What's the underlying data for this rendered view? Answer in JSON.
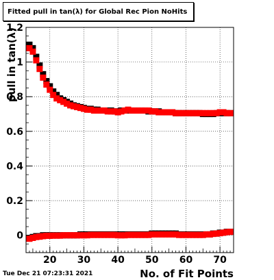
{
  "chart_data": {
    "type": "scatter",
    "title": "Fitted pull in tan(λ) for Global Rec Pion NoHits",
    "xlabel": "No. of Fit Points",
    "ylabel": "pull in tan(λ)",
    "xlim": [
      13,
      74
    ],
    "ylim": [
      -0.1,
      1.2
    ],
    "x_ticks": [
      "20",
      "30",
      "40",
      "50",
      "60",
      "70"
    ],
    "y_ticks": [
      "0",
      "0.2",
      "0.4",
      "0.6",
      "0.8",
      "1",
      "1.2"
    ],
    "grid": true,
    "series": [
      {
        "color": "#000000",
        "marker": "square",
        "x": [
          14,
          15,
          16,
          17,
          18,
          19,
          20,
          21,
          22,
          23,
          24,
          25,
          26,
          27,
          28,
          29,
          30,
          31,
          32,
          33,
          34,
          35,
          36,
          37,
          38,
          39,
          40,
          41,
          42,
          43,
          44,
          45,
          46,
          47,
          48,
          49,
          50,
          51,
          52,
          53,
          54,
          55,
          56,
          57,
          58,
          59,
          60,
          61,
          62,
          63,
          64,
          65,
          66,
          67,
          68,
          69,
          70,
          71,
          72,
          73
        ],
        "values": [
          1.1,
          1.08,
          1.03,
          0.98,
          0.93,
          0.89,
          0.86,
          0.83,
          0.81,
          0.79,
          0.78,
          0.77,
          0.76,
          0.75,
          0.745,
          0.74,
          0.735,
          0.73,
          0.73,
          0.725,
          0.725,
          0.72,
          0.72,
          0.72,
          0.72,
          0.715,
          0.715,
          0.72,
          0.72,
          0.72,
          0.72,
          0.72,
          0.72,
          0.72,
          0.72,
          0.715,
          0.715,
          0.715,
          0.715,
          0.71,
          0.71,
          0.71,
          0.71,
          0.705,
          0.705,
          0.705,
          0.705,
          0.705,
          0.705,
          0.705,
          0.705,
          0.7,
          0.7,
          0.7,
          0.7,
          0.705,
          0.705,
          0.705,
          0.705,
          0.705
        ]
      },
      {
        "color": "#ff0000",
        "marker": "square",
        "x": [
          14,
          15,
          16,
          17,
          18,
          19,
          20,
          21,
          22,
          23,
          24,
          25,
          26,
          27,
          28,
          29,
          30,
          31,
          32,
          33,
          34,
          35,
          36,
          37,
          38,
          39,
          40,
          41,
          42,
          43,
          44,
          45,
          46,
          47,
          48,
          49,
          50,
          51,
          52,
          53,
          54,
          55,
          56,
          57,
          58,
          59,
          60,
          61,
          62,
          63,
          64,
          65,
          66,
          67,
          68,
          69,
          70,
          71,
          72,
          73
        ],
        "values": [
          1.08,
          1.06,
          1.01,
          0.96,
          0.91,
          0.87,
          0.84,
          0.81,
          0.79,
          0.78,
          0.77,
          0.76,
          0.75,
          0.745,
          0.74,
          0.735,
          0.73,
          0.725,
          0.725,
          0.72,
          0.72,
          0.72,
          0.72,
          0.715,
          0.715,
          0.715,
          0.71,
          0.715,
          0.72,
          0.725,
          0.72,
          0.72,
          0.72,
          0.72,
          0.72,
          0.72,
          0.715,
          0.715,
          0.71,
          0.71,
          0.71,
          0.71,
          0.71,
          0.705,
          0.705,
          0.705,
          0.705,
          0.705,
          0.705,
          0.705,
          0.705,
          0.705,
          0.705,
          0.705,
          0.705,
          0.705,
          0.71,
          0.71,
          0.705,
          0.705
        ]
      },
      {
        "color": "#000000",
        "marker": "square",
        "x": [
          14,
          15,
          16,
          17,
          18,
          19,
          20,
          21,
          22,
          23,
          24,
          25,
          26,
          27,
          28,
          29,
          30,
          31,
          32,
          33,
          34,
          35,
          36,
          37,
          38,
          39,
          40,
          41,
          42,
          43,
          44,
          45,
          46,
          47,
          48,
          49,
          50,
          51,
          52,
          53,
          54,
          55,
          56,
          57,
          58,
          59,
          60,
          61,
          62,
          63,
          64,
          65,
          66,
          67,
          68,
          69,
          70,
          71,
          72,
          73
        ],
        "values": [
          -0.015,
          -0.01,
          -0.005,
          -0.005,
          0,
          0,
          0,
          0,
          0,
          0,
          0,
          0,
          0,
          0,
          0,
          0.005,
          0.005,
          0.005,
          0.005,
          0.005,
          0.005,
          0.005,
          0.005,
          0.005,
          0.005,
          0.005,
          0.005,
          0.005,
          0.005,
          0.005,
          0.005,
          0.005,
          0.005,
          0.005,
          0.005,
          0.005,
          0.01,
          0.01,
          0.01,
          0.01,
          0.01,
          0.01,
          0.01,
          0.01,
          0.005,
          0.005,
          0.005,
          0.005,
          0.005,
          0.005,
          0.005,
          0.005,
          0.005,
          0.005,
          0.01,
          0.01,
          0.015,
          0.015,
          0.02,
          0.02
        ]
      },
      {
        "color": "#ff0000",
        "marker": "square",
        "x": [
          14,
          15,
          16,
          17,
          18,
          19,
          20,
          21,
          22,
          23,
          24,
          25,
          26,
          27,
          28,
          29,
          30,
          31,
          32,
          33,
          34,
          35,
          36,
          37,
          38,
          39,
          40,
          41,
          42,
          43,
          44,
          45,
          46,
          47,
          48,
          49,
          50,
          51,
          52,
          53,
          54,
          55,
          56,
          57,
          58,
          59,
          60,
          61,
          62,
          63,
          64,
          65,
          66,
          67,
          68,
          69,
          70,
          71,
          72,
          73
        ],
        "values": [
          -0.02,
          -0.015,
          -0.01,
          -0.008,
          -0.005,
          -0.003,
          -0.003,
          -0.002,
          -0.002,
          -0.002,
          0,
          0,
          0,
          0,
          0,
          0,
          0,
          0,
          0.002,
          0.002,
          0.002,
          0.002,
          0.002,
          0.002,
          0.002,
          0.002,
          0,
          0,
          0,
          0.002,
          0.002,
          0.002,
          0.002,
          0.002,
          0.002,
          0.002,
          0.005,
          0.005,
          0.005,
          0.005,
          0.005,
          0.005,
          0.005,
          0.005,
          0.002,
          0.002,
          0.002,
          0.002,
          0.002,
          0.002,
          0.002,
          0.002,
          0.005,
          0.005,
          0.008,
          0.01,
          0.012,
          0.015,
          0.018,
          0.02
        ]
      }
    ]
  },
  "footer": {
    "timestamp": "Tue Dec 21 07:23:31 2021"
  }
}
